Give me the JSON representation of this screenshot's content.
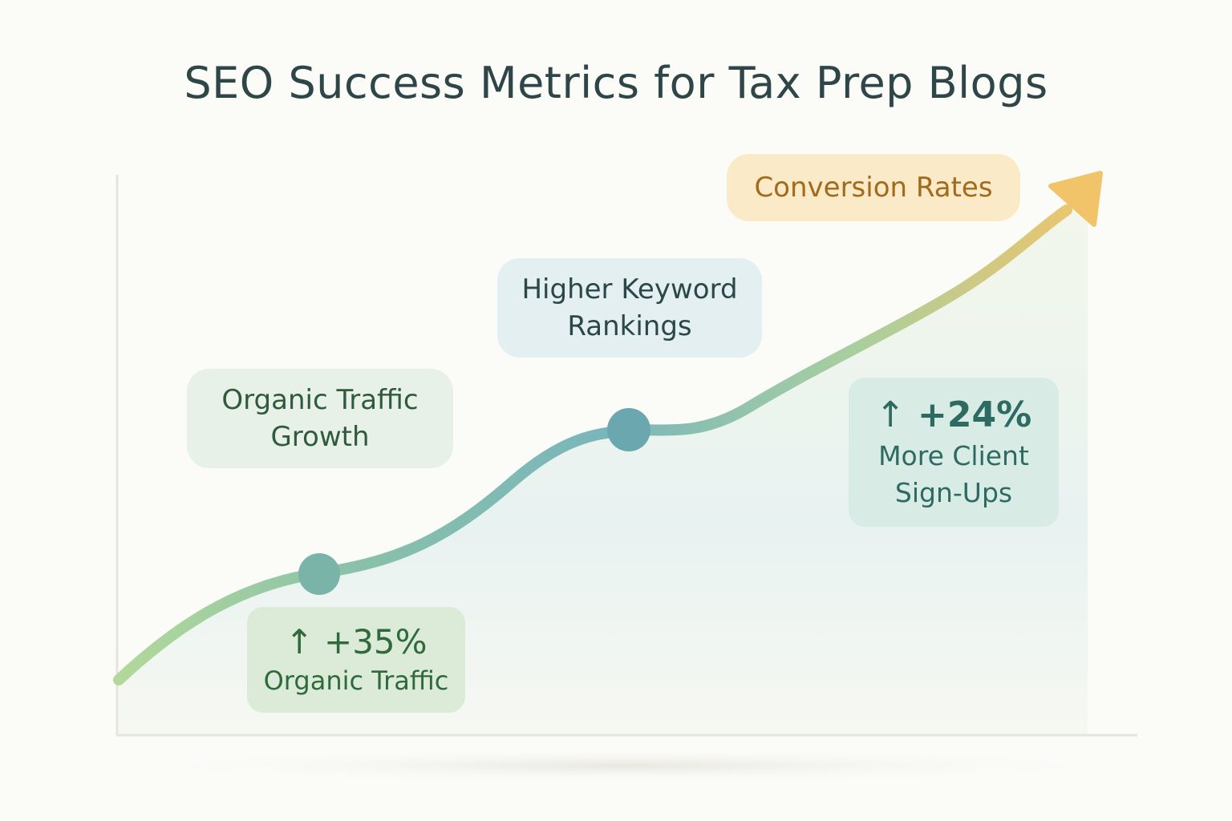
{
  "title": "SEO Success Metrics for Tax Prep Blogs",
  "colors": {
    "background": "#fbfbf8",
    "title": "#2f4648",
    "curve_start": "#a9d59a",
    "curve_mid": "#7ab8b8",
    "curve_end": "#f2c46a",
    "marker": "#6aa7a8",
    "axis": "#e6e4dc"
  },
  "milestones": [
    {
      "label": "Organic Traffic Growth",
      "line1": "Organic Traffic",
      "line2": "Growth"
    },
    {
      "label": "Higher Keyword Rankings",
      "line1": "Higher Keyword",
      "line2": "Rankings"
    },
    {
      "label": "Conversion Rates"
    }
  ],
  "stats": [
    {
      "arrow": "↑",
      "value": "+35%",
      "caption": "Organic Traffic"
    },
    {
      "arrow": "↑",
      "value": "+24%",
      "caption_line1": "More Client",
      "caption_line2": "Sign-Ups"
    }
  ],
  "icons": {
    "up_arrow": "arrow-up-icon",
    "trend_arrow": "trend-arrow-icon"
  }
}
